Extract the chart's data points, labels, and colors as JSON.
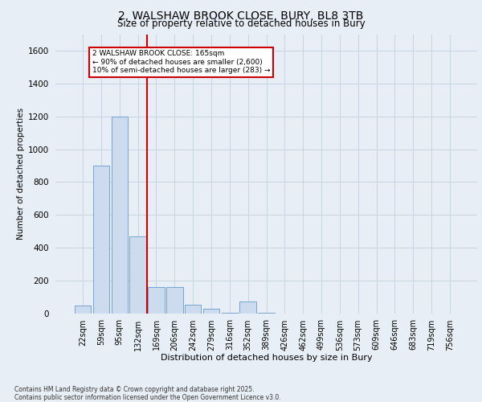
{
  "title_line1": "2, WALSHAW BROOK CLOSE, BURY, BL8 3TB",
  "title_line2": "Size of property relative to detached houses in Bury",
  "xlabel": "Distribution of detached houses by size in Bury",
  "ylabel": "Number of detached properties",
  "categories": [
    "22sqm",
    "59sqm",
    "95sqm",
    "132sqm",
    "169sqm",
    "206sqm",
    "242sqm",
    "279sqm",
    "316sqm",
    "352sqm",
    "389sqm",
    "426sqm",
    "462sqm",
    "499sqm",
    "536sqm",
    "573sqm",
    "609sqm",
    "646sqm",
    "683sqm",
    "719sqm",
    "756sqm"
  ],
  "values": [
    50,
    900,
    1200,
    470,
    160,
    160,
    55,
    30,
    5,
    75,
    5,
    0,
    0,
    0,
    0,
    0,
    0,
    0,
    0,
    0,
    0
  ],
  "bar_color": "#ccdcee",
  "bar_edge_color": "#6699cc",
  "grid_color": "#c8d4e0",
  "background_color": "#e8eef5",
  "vline_color": "#cc0000",
  "annotation_text": "2 WALSHAW BROOK CLOSE: 165sqm\n← 90% of detached houses are smaller (2,600)\n10% of semi-detached houses are larger (283) →",
  "annotation_box_edgecolor": "#cc0000",
  "ylim": [
    0,
    1700
  ],
  "yticks": [
    0,
    200,
    400,
    600,
    800,
    1000,
    1200,
    1400,
    1600
  ],
  "footer": "Contains HM Land Registry data © Crown copyright and database right 2025.\nContains public sector information licensed under the Open Government Licence v3.0."
}
